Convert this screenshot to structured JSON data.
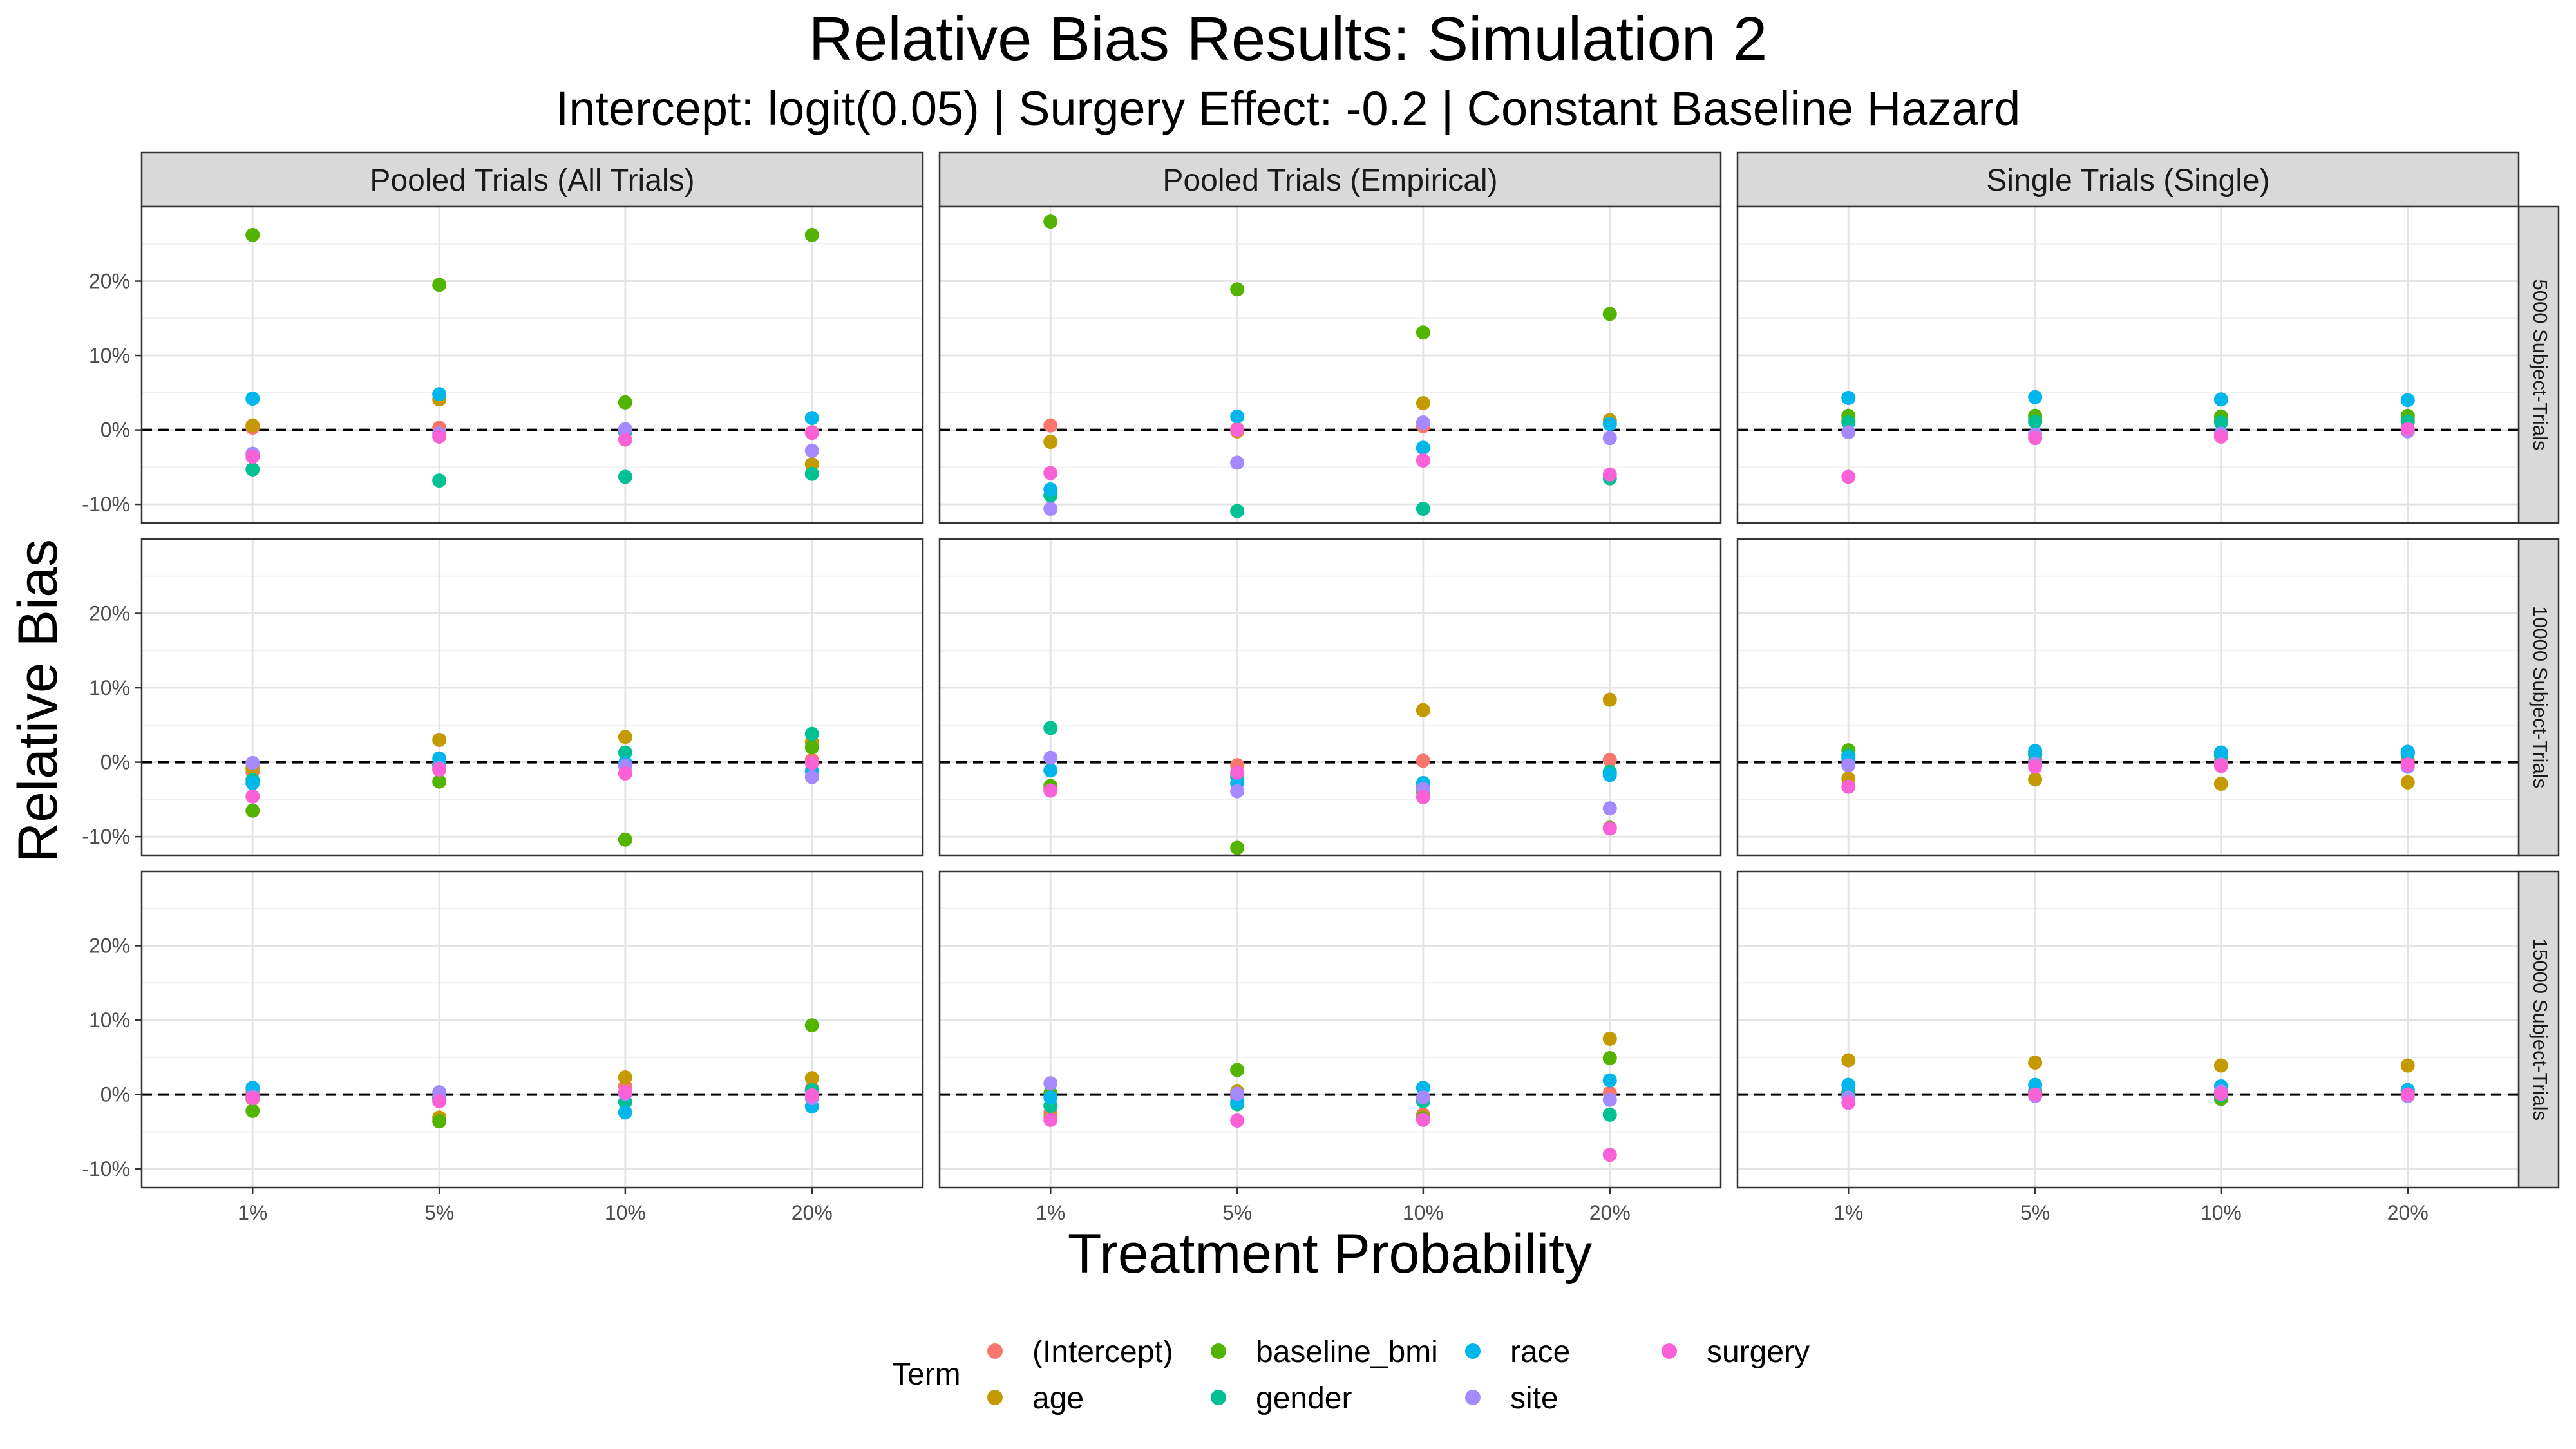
{
  "title": "Relative Bias Results: Simulation 2",
  "subtitle": "Intercept: logit(0.05) | Surgery Effect: -0.2 | Constant Baseline Hazard",
  "chart_data": {
    "type": "scatter",
    "xlabel": "Treatment Probability",
    "ylabel": "Relative Bias",
    "categories": [
      "1%",
      "5%",
      "10%",
      "20%"
    ],
    "y_ticks": [
      "-10%",
      "0%",
      "10%",
      "20%"
    ],
    "y_tick_values": [
      -10,
      0,
      10,
      20
    ],
    "ylim": [
      -12.5,
      30
    ],
    "reference_line": 0,
    "grid": true,
    "columns": [
      "Pooled Trials (All Trials)",
      "Pooled Trials (Empirical)",
      "Single Trials (Single)"
    ],
    "rows": [
      "5000 Subject-Trials",
      "10000 Subject-Trials",
      "15000 Subject-Trials"
    ],
    "legend": {
      "title": "Term",
      "position": "bottom",
      "items": [
        {
          "name": "(Intercept)",
          "color": "#F8766D"
        },
        {
          "name": "age",
          "color": "#C49A00"
        },
        {
          "name": "baseline_bmi",
          "color": "#53B400"
        },
        {
          "name": "gender",
          "color": "#00C094"
        },
        {
          "name": "race",
          "color": "#00B6EB"
        },
        {
          "name": "site",
          "color": "#A58AFF"
        },
        {
          "name": "surgery",
          "color": "#FB61D7"
        }
      ]
    },
    "panels": [
      {
        "row": 0,
        "col": 0,
        "series": {
          "(Intercept)": [
            0.3,
            0.3,
            -0.2,
            -0.3
          ],
          "age": [
            0.6,
            4.1,
            -0.1,
            -4.6
          ],
          "baseline_bmi": [
            26.2,
            19.5,
            3.7,
            26.2
          ],
          "gender": [
            -5.3,
            -6.8,
            -6.3,
            -5.9
          ],
          "race": [
            4.2,
            4.8,
            -0.3,
            1.6
          ],
          "site": [
            -3.2,
            -0.5,
            0.1,
            -2.8
          ],
          "surgery": [
            -3.6,
            -0.9,
            -1.3,
            -0.4
          ]
        }
      },
      {
        "row": 0,
        "col": 1,
        "series": {
          "(Intercept)": [
            0.6,
            0.1,
            0.5,
            0.9
          ],
          "age": [
            -1.6,
            -0.2,
            3.6,
            1.3
          ],
          "baseline_bmi": [
            28.0,
            18.9,
            13.1,
            15.6
          ],
          "gender": [
            -8.8,
            -10.9,
            -10.6,
            -6.5
          ],
          "race": [
            -8.0,
            1.8,
            -2.4,
            0.8
          ],
          "site": [
            -10.6,
            -4.4,
            1.0,
            -1.1
          ],
          "surgery": [
            -5.8,
            0.0,
            -4.1,
            -6.0
          ]
        }
      },
      {
        "row": 0,
        "col": 2,
        "series": {
          "(Intercept)": [
            1.2,
            1.3,
            1.1,
            1.3
          ],
          "age": [
            1.4,
            1.5,
            1.3,
            1.4
          ],
          "baseline_bmi": [
            1.9,
            1.9,
            1.8,
            1.9
          ],
          "gender": [
            1.0,
            1.1,
            1.0,
            1.1
          ],
          "race": [
            4.3,
            4.4,
            4.1,
            4.0
          ],
          "site": [
            -0.3,
            -0.6,
            -0.5,
            -0.2
          ],
          "surgery": [
            -6.3,
            -1.1,
            -0.9,
            0.1
          ]
        }
      },
      {
        "row": 1,
        "col": 0,
        "series": {
          "(Intercept)": [
            -1.3,
            -0.3,
            -0.5,
            0.3
          ],
          "age": [
            -0.8,
            3.0,
            3.4,
            2.7
          ],
          "baseline_bmi": [
            -6.5,
            -2.6,
            -10.4,
            2.0
          ],
          "gender": [
            -2.4,
            -0.5,
            1.3,
            3.8
          ],
          "race": [
            -2.8,
            0.5,
            -0.1,
            -1.2
          ],
          "site": [
            -0.1,
            -0.8,
            -0.5,
            -2.0
          ],
          "surgery": [
            -4.6,
            -1.0,
            -1.5,
            -0.1
          ]
        }
      },
      {
        "row": 1,
        "col": 1,
        "series": {
          "(Intercept)": [
            -3.7,
            -0.4,
            0.2,
            0.3
          ],
          "age": [
            -3.5,
            -1.5,
            7.0,
            8.4
          ],
          "baseline_bmi": [
            -3.2,
            -11.5,
            -4.0,
            -8.8
          ],
          "gender": [
            4.6,
            -2.0,
            -3.3,
            -1.3
          ],
          "race": [
            -1.1,
            -2.8,
            -2.8,
            -1.7
          ],
          "site": [
            0.6,
            -3.9,
            -3.6,
            -6.2
          ],
          "surgery": [
            -3.8,
            -1.4,
            -4.7,
            -8.9
          ]
        }
      },
      {
        "row": 1,
        "col": 2,
        "series": {
          "(Intercept)": [
            0.2,
            0.3,
            0.2,
            0.3
          ],
          "age": [
            -2.2,
            -2.3,
            -2.9,
            -2.7
          ],
          "baseline_bmi": [
            1.6,
            1.2,
            0.9,
            1.3
          ],
          "gender": [
            0.9,
            1.0,
            1.0,
            1.1
          ],
          "race": [
            0.6,
            1.5,
            1.3,
            1.4
          ],
          "site": [
            -0.4,
            -0.2,
            -0.3,
            -0.6
          ],
          "surgery": [
            -3.3,
            -0.6,
            -0.5,
            -0.3
          ]
        }
      },
      {
        "row": 2,
        "col": 0,
        "series": {
          "(Intercept)": [
            0.3,
            -0.3,
            1.1,
            0.8
          ],
          "age": [
            -0.6,
            -3.1,
            2.3,
            2.2
          ],
          "baseline_bmi": [
            -2.2,
            -3.6,
            0.3,
            9.3
          ],
          "gender": [
            -0.5,
            -0.6,
            -1.0,
            0.6
          ],
          "race": [
            0.9,
            -0.5,
            -2.4,
            -1.6
          ],
          "site": [
            -0.3,
            0.3,
            0.1,
            -0.5
          ],
          "surgery": [
            -0.5,
            -0.9,
            0.3,
            -0.1
          ]
        }
      },
      {
        "row": 2,
        "col": 1,
        "series": {
          "(Intercept)": [
            -2.4,
            -0.3,
            -2.7,
            0.2
          ],
          "age": [
            -3.0,
            0.4,
            -3.0,
            7.5
          ],
          "baseline_bmi": [
            0.2,
            3.3,
            -3.2,
            4.9
          ],
          "gender": [
            -1.5,
            -1.3,
            -0.9,
            -2.7
          ],
          "race": [
            -0.4,
            -1.0,
            0.9,
            1.9
          ],
          "site": [
            1.5,
            0.1,
            -0.4,
            -0.7
          ],
          "surgery": [
            -3.4,
            -3.5,
            -3.4,
            -8.1
          ]
        }
      },
      {
        "row": 2,
        "col": 2,
        "series": {
          "(Intercept)": [
            0.4,
            0.5,
            0.3,
            0.5
          ],
          "age": [
            4.6,
            4.3,
            3.9,
            3.9
          ],
          "baseline_bmi": [
            -0.1,
            0.2,
            -0.6,
            0.2
          ],
          "gender": [
            0.3,
            0.4,
            -0.1,
            0.6
          ],
          "race": [
            1.3,
            1.3,
            1.1,
            0.6
          ],
          "site": [
            -0.4,
            -0.2,
            0.4,
            -0.2
          ],
          "surgery": [
            -1.1,
            0.0,
            0.1,
            0.0
          ]
        }
      }
    ]
  }
}
